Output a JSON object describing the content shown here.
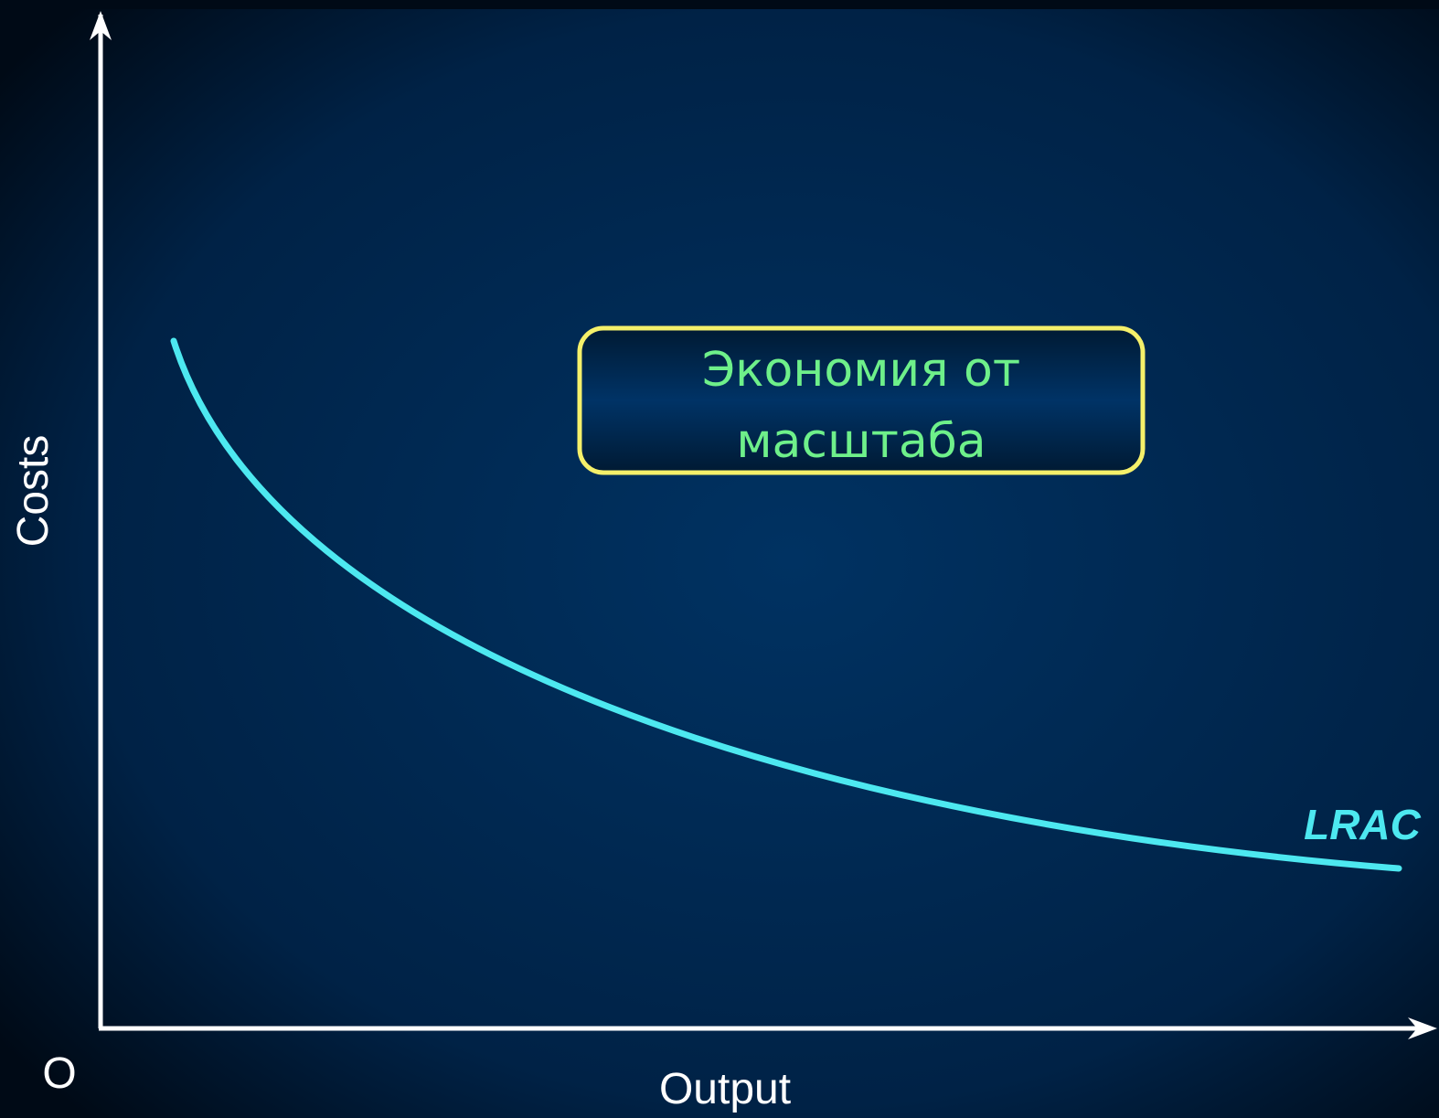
{
  "axes": {
    "y_label": "Costs",
    "x_label": "Output",
    "origin": "O"
  },
  "curve": {
    "label": "LRAC"
  },
  "callout": {
    "lines": [
      "Экономия от",
      "масштаба"
    ]
  }
}
